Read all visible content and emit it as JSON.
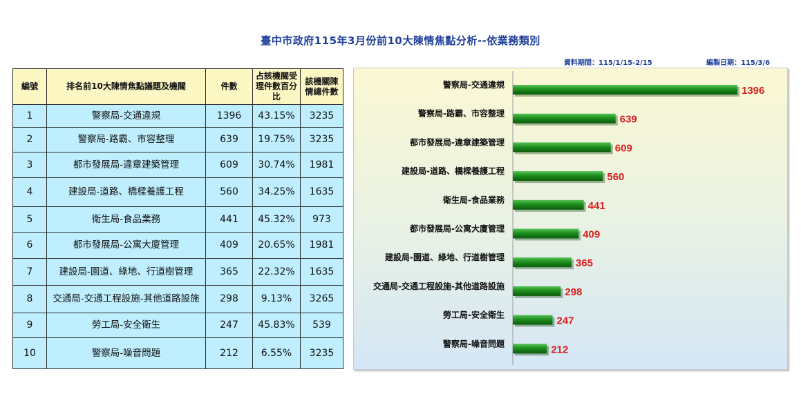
{
  "header": {
    "title": "臺中市政府115年3月份前10大陳情焦點分析--依業務類別",
    "data_period": "資料期間：115/1/15-2/15",
    "compiled_date": "編製日期：115/3/6"
  },
  "table": {
    "headers": [
      "編號",
      "排名前10大陳情焦點議題及機關",
      "件數",
      "占該機關受理件數百分比",
      "該機關陳情總件數"
    ],
    "rows": [
      {
        "no": "1",
        "topic": "警察局-交通違規",
        "count": "1396",
        "pct": "43.15%",
        "total": "3235"
      },
      {
        "no": "2",
        "topic": "警察局-路霸、市容整理",
        "count": "639",
        "pct": "19.75%",
        "total": "3235"
      },
      {
        "no": "3",
        "topic": "都市發展局-違章建築管理",
        "count": "609",
        "pct": "30.74%",
        "total": "1981"
      },
      {
        "no": "4",
        "topic": "建設局-道路、橋樑養護工程",
        "count": "560",
        "pct": "34.25%",
        "total": "1635"
      },
      {
        "no": "5",
        "topic": "衛生局-食品業務",
        "count": "441",
        "pct": "45.32%",
        "total": "973"
      },
      {
        "no": "6",
        "topic": "都市發展局-公寓大廈管理",
        "count": "409",
        "pct": "20.65%",
        "total": "1981"
      },
      {
        "no": "7",
        "topic": "建設局-園道、綠地、行道樹管理",
        "count": "365",
        "pct": "22.32%",
        "total": "1635"
      },
      {
        "no": "8",
        "topic": "交通局-交通工程設施-其他道路設施",
        "count": "298",
        "pct": "9.13%",
        "total": "3265"
      },
      {
        "no": "9",
        "topic": "勞工局-安全衛生",
        "count": "247",
        "pct": "45.83%",
        "total": "539"
      },
      {
        "no": "10",
        "topic": "警察局-噪音問題",
        "count": "212",
        "pct": "6.55%",
        "total": "3235"
      }
    ]
  },
  "chart_data": {
    "type": "bar",
    "orientation": "horizontal",
    "categories": [
      "警察局-交通違規",
      "警察局-路霸、市容整理",
      "都市發展局-違章建築管理",
      "建設局-道路、橋樑養護工程",
      "衛生局-食品業務",
      "都市發展局-公寓大廈管理",
      "建設局-園道、綠地、行道樹管理",
      "交通局-交通工程設施-其他道路設施",
      "勞工局-安全衛生",
      "警察局-噪音問題"
    ],
    "values": [
      1396,
      639,
      609,
      560,
      441,
      409,
      365,
      298,
      247,
      212
    ],
    "title": "",
    "xlabel": "",
    "ylabel": "",
    "grid": false,
    "bar_color": "#1e8f1e",
    "label_color": "#d81e1e"
  }
}
